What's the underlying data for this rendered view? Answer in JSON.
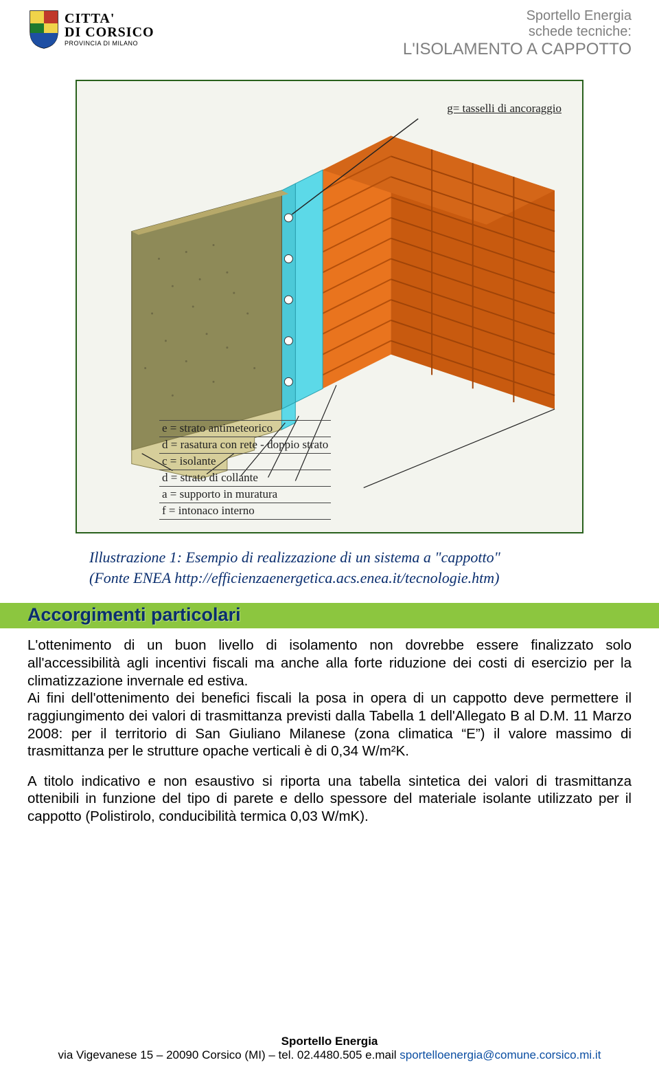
{
  "header": {
    "logo_line1": "CITTA'",
    "logo_line2": "DI CORSICO",
    "logo_sub": "PROVINCIA DI MILANO",
    "right_line1": "Sportello Energia",
    "right_line2": "schede tecniche:",
    "right_line3": "L'ISOLAMENTO A CAPPOTTO"
  },
  "diagram": {
    "top_label": "g= tasselli di ancoraggio",
    "legend": [
      "e = strato antimeteorico",
      "d = rasatura con rete - doppio strato",
      "c = isolante",
      "d = strato di collante",
      "a = supporto in muratura",
      "f = intonaco interno"
    ],
    "colors": {
      "border": "#29601c",
      "bg": "#f3f4ee",
      "brick": "#e9741e",
      "brick_dark": "#c85a0f",
      "mortar": "#a9896a",
      "insulation": "#5cd9e8",
      "plaster": "#8e8a58",
      "finish_top": "#b7a96a",
      "dowel": "#ffffff"
    }
  },
  "caption": {
    "line1": "Illustrazione 1: Esempio di realizzazione di un sistema a \"cappotto\"",
    "line2": "(Fonte ENEA http://efficienzaenergetica.acs.enea.it/tecnologie.htm)"
  },
  "section_title": "Accorgimenti particolari",
  "paragraph1": "L'ottenimento di un buon livello di isolamento non dovrebbe essere finalizzato solo all'accessibilità agli incentivi fiscali ma anche alla forte riduzione dei costi di esercizio per la climatizzazione invernale ed estiva.\nAi fini dell'ottenimento dei benefici fiscali la posa in opera di un cappotto deve permettere il raggiungimento dei valori di trasmittanza previsti dalla Tabella 1 dell'Allegato B al D.M. 11 Marzo 2008: per il territorio di San Giuliano Milanese (zona climatica “E”) il valore massimo di trasmittanza per le strutture opache verticali è di 0,34 W/m²K.",
  "paragraph2": "A titolo indicativo e non esaustivo si riporta una tabella sintetica dei valori di trasmittanza ottenibili in funzione del tipo di parete e dello spessore del materiale isolante utilizzato per il cappotto (Polistirolo, conducibilità termica 0,03 W/mK).",
  "footer": {
    "title": "Sportello Energia",
    "line": "via Vigevanese 15 – 20090 Corsico (MI) – tel. 02.4480.505 e.mail ",
    "email": "sportelloenergia@comune.corsico.mi.it"
  }
}
